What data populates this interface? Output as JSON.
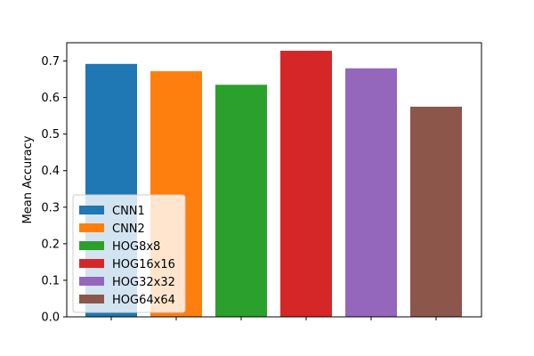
{
  "chart_data": {
    "type": "bar",
    "title": "",
    "xlabel": "",
    "ylabel": "Mean Accuracy",
    "ylim": [
      0,
      0.75
    ],
    "yticks": [
      0.0,
      0.1,
      0.2,
      0.3,
      0.4,
      0.5,
      0.6,
      0.7
    ],
    "ytick_labels": [
      "0.0",
      "0.1",
      "0.2",
      "0.3",
      "0.4",
      "0.5",
      "0.6",
      "0.7"
    ],
    "grid": false,
    "legend_position": "lower-left",
    "series": [
      {
        "name": "CNN1",
        "value": 0.692,
        "color": "#1f77b4"
      },
      {
        "name": "CNN2",
        "value": 0.672,
        "color": "#ff7f0e"
      },
      {
        "name": "HOG8x8",
        "value": 0.635,
        "color": "#2ca02c"
      },
      {
        "name": "HOG16x16",
        "value": 0.728,
        "color": "#d62728"
      },
      {
        "name": "HOG32x32",
        "value": 0.68,
        "color": "#9467bd"
      },
      {
        "name": "HOG64x64",
        "value": 0.575,
        "color": "#8c564b"
      }
    ]
  }
}
